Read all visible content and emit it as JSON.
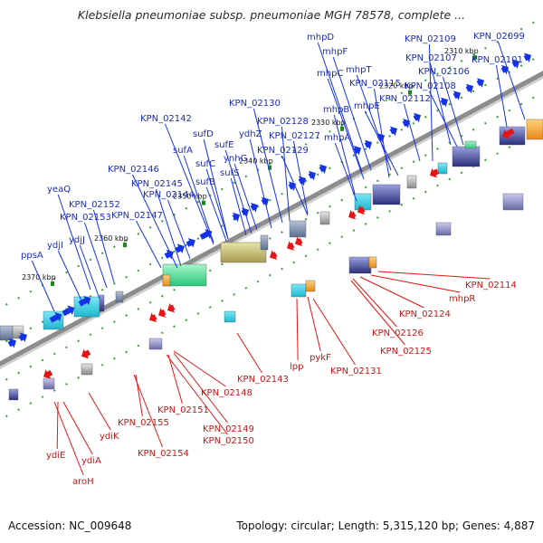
{
  "title": "Klebsiella pneumoniae subsp. pneumoniae MGH 78578, complete ...",
  "footer": {
    "accession": "Accession: NC_009648",
    "summary": "Topology: circular; Length: 5,315,120 bp; Genes: 4,887"
  },
  "colors": {
    "forward_gene": "#1432e6",
    "reverse_gene": "#e61414",
    "backbone": "#8c8c8c",
    "forward_label": "#1c2bb8",
    "reverse_label": "#c61515",
    "tick": "#1a8a1a"
  },
  "ticks": [
    "2310 kbp",
    "2320 kbp",
    "2330 kbp",
    "2340 kbp",
    "2350 kbp",
    "2360 kbp",
    "2370 kbp"
  ],
  "forward_labels": [
    "mhpD",
    "KPN_02109",
    "KPN_02099",
    "mhpF",
    "KPN_02107",
    "KPN_02101",
    "mhpT",
    "mhpC",
    "KPN_02106",
    "KPN_02108",
    "KPN_02115",
    "mhpB",
    "mhpE",
    "KPN_02112",
    "KPN_02130",
    "mhpA",
    "KPN_02142",
    "KPN_02128",
    "sufD",
    "ydhZ",
    "KPN_02127",
    "sufA",
    "sufE",
    "KPN_02129",
    "ynhG",
    "sufC",
    "sufS",
    "KPN_02146",
    "sufB",
    "KPN_02145",
    "yeaQ",
    "KPN_02144",
    "KPN_02152",
    "KPN_02153",
    "KPN_02147",
    "ydjI",
    "ydjJ",
    "ppsA"
  ],
  "reverse_labels": [
    "KPN_02114",
    "mhpR",
    "KPN_02124",
    "KPN_02126",
    "KPN_02125",
    "lpp",
    "pykF",
    "KPN_02131",
    "KPN_02143",
    "KPN_02148",
    "KPN_02151",
    "KPN_02155",
    "KPN_02149",
    "KPN_02150",
    "ydiK",
    "KPN_02154",
    "ydiE",
    "ydiA",
    "aroH"
  ]
}
